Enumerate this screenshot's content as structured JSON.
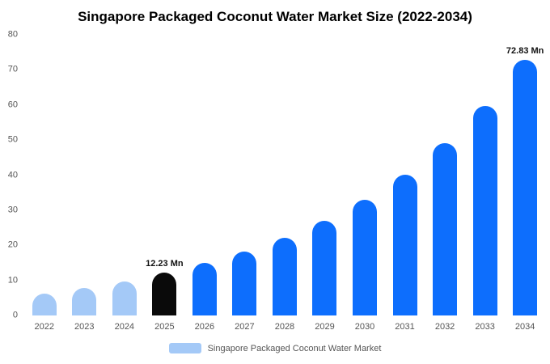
{
  "title": "Singapore Packaged Coconut Water Market Size (2022-2034)",
  "chart_data": {
    "type": "bar",
    "title": "Singapore Packaged Coconut Water Market Size (2022-2034)",
    "categories": [
      "2022",
      "2023",
      "2024",
      "2025",
      "2026",
      "2027",
      "2028",
      "2029",
      "2030",
      "2031",
      "2032",
      "2033",
      "2034"
    ],
    "values": [
      6.2,
      7.8,
      9.6,
      12.23,
      14.9,
      18.2,
      22.2,
      27.0,
      32.9,
      40.2,
      49.0,
      59.7,
      72.83
    ],
    "xlabel": "",
    "ylabel": "",
    "ylim": [
      0,
      80
    ],
    "yticks": [
      0,
      10,
      20,
      30,
      40,
      50,
      60,
      70,
      80
    ],
    "grid": false,
    "bar_colors": [
      "#a4c9f7",
      "#a4c9f7",
      "#a4c9f7",
      "#0a0a0a",
      "#0d6efd",
      "#0d6efd",
      "#0d6efd",
      "#0d6efd",
      "#0d6efd",
      "#0d6efd",
      "#0d6efd",
      "#0d6efd",
      "#0d6efd"
    ],
    "annotations": [
      {
        "index": 3,
        "text": "12.23 Mn"
      },
      {
        "index": 12,
        "text": "72.83 Mn"
      }
    ],
    "legend": {
      "label": "Singapore Packaged Coconut Water Market",
      "color": "#a4c9f7",
      "position": "bottom"
    }
  }
}
